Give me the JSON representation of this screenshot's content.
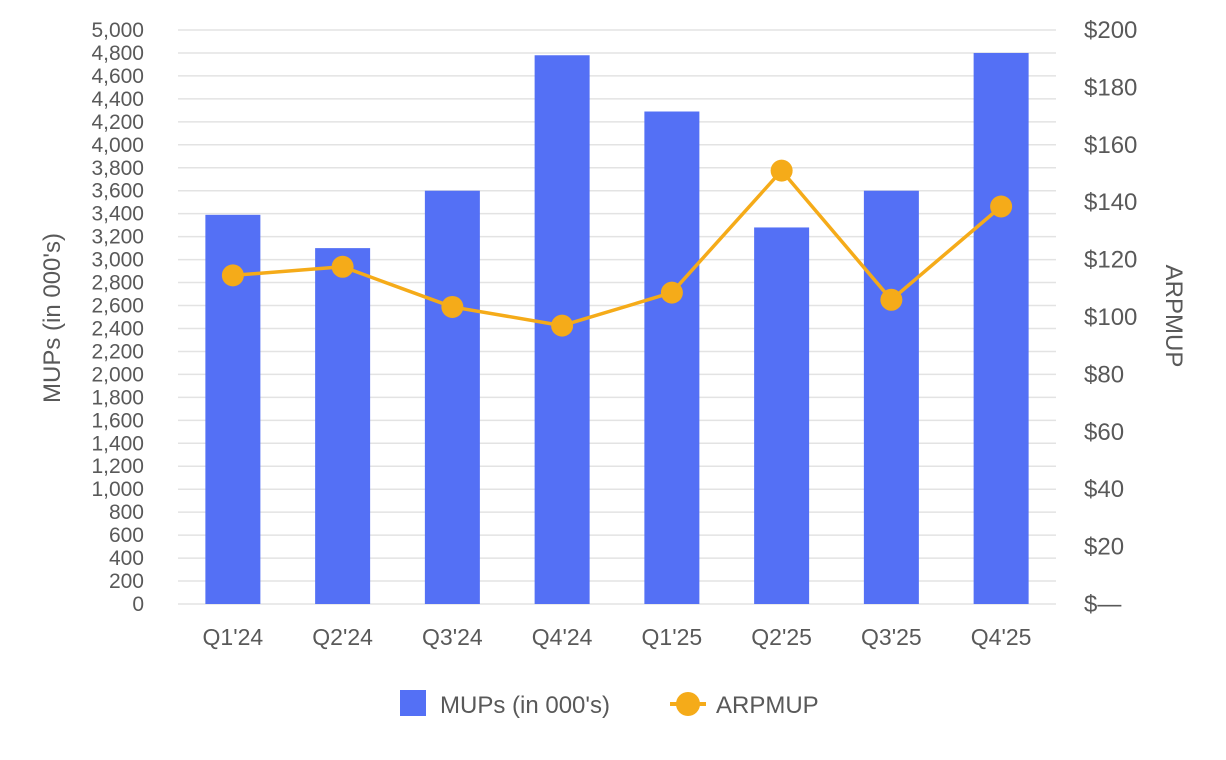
{
  "chart_data": {
    "type": "bar",
    "categories": [
      "Q1'24",
      "Q2'24",
      "Q3'24",
      "Q4'24",
      "Q1'25",
      "Q2'25",
      "Q3'25",
      "Q4'25"
    ],
    "series": [
      {
        "name": "MUPs (in 000's)",
        "type": "bar",
        "axis": "left",
        "color": "#5470f5",
        "values": [
          3390,
          3100,
          3600,
          4780,
          4290,
          3280,
          3600,
          4800
        ]
      },
      {
        "name": "ARPMUP",
        "type": "line",
        "axis": "right",
        "color": "#f5ab19",
        "values": [
          114.5,
          117.5,
          103.5,
          97,
          108.5,
          151,
          106,
          138.5
        ]
      }
    ],
    "y_left": {
      "label": "MUPs (in 000's)",
      "ylim": [
        0,
        5000
      ],
      "ticks": [
        "0",
        "200",
        "400",
        "600",
        "800",
        "1,000",
        "1,200",
        "1,400",
        "1,600",
        "1,800",
        "2,000",
        "2,200",
        "2,400",
        "2,600",
        "2,800",
        "3,000",
        "3,200",
        "3,400",
        "3,600",
        "3,800",
        "4,000",
        "4,200",
        "4,400",
        "4,600",
        "4,800",
        "5,000"
      ]
    },
    "y_right": {
      "label": "ARPMUP",
      "ylim": [
        0,
        200
      ],
      "ticks": [
        "$—",
        "$20",
        "$40",
        "$60",
        "$80",
        "$100",
        "$120",
        "$140",
        "$160",
        "$180",
        "$200"
      ]
    },
    "grid": true,
    "legend_position": "bottom"
  }
}
